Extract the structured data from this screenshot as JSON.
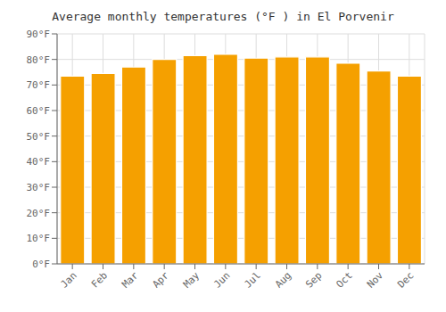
{
  "chart_data": {
    "type": "bar",
    "title": "Average monthly temperatures (°F ) in El Porvenir",
    "categories": [
      "Jan",
      "Feb",
      "Mar",
      "Apr",
      "May",
      "Jun",
      "Jul",
      "Aug",
      "Sep",
      "Oct",
      "Nov",
      "Dec"
    ],
    "values": [
      73.5,
      74.5,
      77.0,
      80.0,
      81.5,
      82.0,
      80.5,
      81.0,
      81.0,
      78.5,
      75.5,
      73.5
    ],
    "color": "#F5A000",
    "ylim": [
      0,
      90
    ],
    "yticks": [
      {
        "value": 0,
        "label": "0°F"
      },
      {
        "value": 10,
        "label": "10°F"
      },
      {
        "value": 20,
        "label": "20°F"
      },
      {
        "value": 30,
        "label": "30°F"
      },
      {
        "value": 40,
        "label": "40°F"
      },
      {
        "value": 50,
        "label": "50°F"
      },
      {
        "value": 60,
        "label": "60°F"
      },
      {
        "value": 70,
        "label": "70°F"
      },
      {
        "value": 80,
        "label": "80°F"
      },
      {
        "value": 90,
        "label": "90°F"
      }
    ],
    "grid": true
  }
}
